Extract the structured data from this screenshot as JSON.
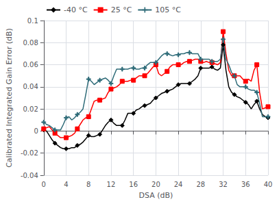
{
  "chart_data": {
    "type": "line",
    "xlabel": "DSA (dB)",
    "ylabel": "Calibrated Integrated Gain Error (dB)",
    "x": [
      0,
      0.5,
      1,
      1.5,
      2,
      2.5,
      3,
      3.5,
      4,
      4.5,
      5,
      5.5,
      6,
      6.5,
      7,
      7.5,
      8,
      8.5,
      9,
      9.5,
      10,
      10.5,
      11,
      11.5,
      12,
      12.5,
      13,
      13.5,
      14,
      14.5,
      15,
      15.5,
      16,
      16.5,
      17,
      17.5,
      18,
      18.5,
      19,
      19.5,
      20,
      20.5,
      21,
      21.5,
      22,
      22.5,
      23,
      23.5,
      24,
      24.5,
      25,
      25.5,
      26,
      26.5,
      27,
      27.5,
      28,
      28.5,
      29,
      29.5,
      30,
      30.5,
      31,
      31.5,
      32,
      32.5,
      33,
      33.5,
      34,
      34.5,
      35,
      35.5,
      36,
      36.5,
      37,
      37.5,
      38,
      38.5,
      39,
      39.5,
      40
    ],
    "series": [
      {
        "name": "-40 °C",
        "color": "#000000",
        "marker": "diamond",
        "values": [
          0.001,
          0.0,
          -0.004,
          -0.008,
          -0.011,
          -0.013,
          -0.015,
          -0.016,
          -0.016,
          -0.016,
          -0.015,
          -0.015,
          -0.013,
          -0.012,
          -0.01,
          -0.007,
          -0.004,
          -0.005,
          -0.005,
          -0.004,
          -0.003,
          0.001,
          0.005,
          0.008,
          0.01,
          0.007,
          0.005,
          0.005,
          0.005,
          0.01,
          0.016,
          0.016,
          0.016,
          0.019,
          0.02,
          0.022,
          0.023,
          0.024,
          0.025,
          0.028,
          0.03,
          0.032,
          0.034,
          0.035,
          0.036,
          0.037,
          0.038,
          0.04,
          0.042,
          0.043,
          0.043,
          0.043,
          0.043,
          0.045,
          0.047,
          0.05,
          0.057,
          0.057,
          0.057,
          0.057,
          0.058,
          0.056,
          0.055,
          0.057,
          0.078,
          0.055,
          0.04,
          0.035,
          0.033,
          0.031,
          0.03,
          0.028,
          0.026,
          0.024,
          0.02,
          0.024,
          0.027,
          0.02,
          0.015,
          0.013,
          0.012
        ]
      },
      {
        "name": "25 °C",
        "color": "#ff0000",
        "marker": "square",
        "values": [
          0.002,
          0.003,
          0.004,
          0.001,
          -0.002,
          -0.004,
          -0.006,
          -0.006,
          -0.006,
          -0.005,
          -0.004,
          -0.002,
          0.002,
          0.006,
          0.01,
          0.012,
          0.013,
          0.02,
          0.027,
          0.028,
          0.028,
          0.029,
          0.03,
          0.035,
          0.038,
          0.039,
          0.04,
          0.042,
          0.045,
          0.045,
          0.045,
          0.046,
          0.046,
          0.048,
          0.05,
          0.05,
          0.05,
          0.052,
          0.055,
          0.058,
          0.06,
          0.052,
          0.05,
          0.052,
          0.054,
          0.058,
          0.06,
          0.06,
          0.06,
          0.06,
          0.062,
          0.063,
          0.063,
          0.064,
          0.065,
          0.065,
          0.063,
          0.062,
          0.063,
          0.062,
          0.062,
          0.061,
          0.06,
          0.062,
          0.09,
          0.07,
          0.055,
          0.05,
          0.05,
          0.05,
          0.05,
          0.047,
          0.045,
          0.047,
          0.045,
          0.055,
          0.06,
          0.035,
          0.02,
          0.021,
          0.022
        ]
      },
      {
        "name": "105 °C",
        "color": "#2e6b78",
        "marker": "plus",
        "values": [
          0.008,
          0.006,
          0.005,
          0.003,
          0.001,
          0.001,
          0.001,
          0.006,
          0.012,
          0.013,
          0.01,
          0.012,
          0.015,
          0.017,
          0.02,
          0.033,
          0.047,
          0.045,
          0.042,
          0.044,
          0.046,
          0.047,
          0.048,
          0.046,
          0.043,
          0.05,
          0.056,
          0.056,
          0.056,
          0.056,
          0.056,
          0.057,
          0.057,
          0.056,
          0.056,
          0.057,
          0.057,
          0.06,
          0.062,
          0.062,
          0.062,
          0.065,
          0.068,
          0.07,
          0.07,
          0.069,
          0.068,
          0.069,
          0.069,
          0.07,
          0.07,
          0.071,
          0.071,
          0.07,
          0.07,
          0.07,
          0.065,
          0.065,
          0.065,
          0.065,
          0.063,
          0.063,
          0.063,
          0.065,
          0.083,
          0.065,
          0.06,
          0.053,
          0.05,
          0.042,
          0.04,
          0.04,
          0.04,
          0.038,
          0.037,
          0.037,
          0.035,
          0.025,
          0.013,
          0.013,
          0.013
        ]
      }
    ],
    "xlim": [
      0,
      40
    ],
    "xticks": [
      0,
      4,
      8,
      12,
      16,
      20,
      24,
      28,
      32,
      36,
      40
    ],
    "ylim": [
      -0.04,
      0.1
    ],
    "yticks": [
      -0.04,
      -0.02,
      0,
      0.02,
      0.04,
      0.06,
      0.08,
      0.1
    ],
    "grid": true,
    "legend": "upper left"
  }
}
